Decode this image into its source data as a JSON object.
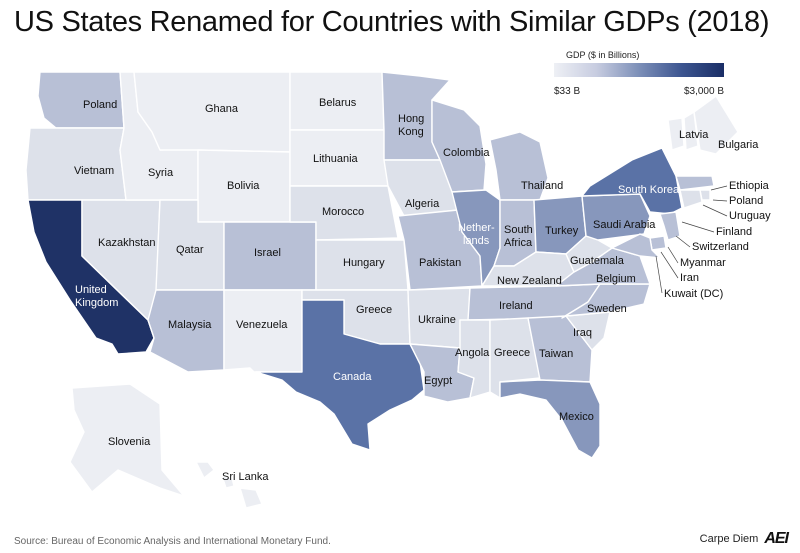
{
  "title": "US States Renamed for Countries with Similar GDPs (2018)",
  "legend": {
    "title": "GDP ($ in Billions)",
    "min_label": "$33 B",
    "max_label": "$3,000 B",
    "colors": [
      "#eef0f5",
      "#c7cce0",
      "#7c8fb8",
      "#3c5590",
      "#1a2e66"
    ]
  },
  "states": [
    {
      "state": "WA",
      "country": "Poland",
      "shade": 2
    },
    {
      "state": "OR",
      "country": "Vietnam",
      "shade": 1
    },
    {
      "state": "CA",
      "country": "United Kingdom",
      "shade": 5
    },
    {
      "state": "NV",
      "country": "Kazakhstan",
      "shade": 1
    },
    {
      "state": "ID",
      "country": "Syria",
      "shade": 0
    },
    {
      "state": "MT",
      "country": "Ghana",
      "shade": 0
    },
    {
      "state": "WY",
      "country": "Bolivia",
      "shade": 0
    },
    {
      "state": "UT",
      "country": "Qatar",
      "shade": 1
    },
    {
      "state": "CO",
      "country": "Israel",
      "shade": 2
    },
    {
      "state": "AZ",
      "country": "Malaysia",
      "shade": 2
    },
    {
      "state": "NM",
      "country": "Venezuela",
      "shade": 0
    },
    {
      "state": "ND",
      "country": "Belarus",
      "shade": 0
    },
    {
      "state": "SD",
      "country": "Lithuania",
      "shade": 0
    },
    {
      "state": "NE",
      "country": "Morocco",
      "shade": 1
    },
    {
      "state": "KS",
      "country": "Hungary",
      "shade": 1
    },
    {
      "state": "OK",
      "country": "Greece",
      "shade": 1
    },
    {
      "state": "TX",
      "country": "Canada",
      "shade": 4
    },
    {
      "state": "MN",
      "country": "Hong Kong",
      "shade": 2
    },
    {
      "state": "IA",
      "country": "Algeria",
      "shade": 1
    },
    {
      "state": "MO",
      "country": "Pakistan",
      "shade": 2
    },
    {
      "state": "AR",
      "country": "Ukraine",
      "shade": 1
    },
    {
      "state": "LA",
      "country": "Egypt",
      "shade": 2
    },
    {
      "state": "WI",
      "country": "Colombia",
      "shade": 2
    },
    {
      "state": "IL",
      "country": "Netherlands",
      "shade": 3
    },
    {
      "state": "MI",
      "country": "Thailand",
      "shade": 2
    },
    {
      "state": "IN",
      "country": "South Africa",
      "shade": 2
    },
    {
      "state": "OH",
      "country": "Turkey",
      "shade": 3
    },
    {
      "state": "KY",
      "country": "New Zealand",
      "shade": 1
    },
    {
      "state": "TN",
      "country": "Ireland",
      "shade": 2
    },
    {
      "state": "MS",
      "country": "Angola",
      "shade": 1
    },
    {
      "state": "AL",
      "country": "Greece",
      "shade": 1
    },
    {
      "state": "GA",
      "country": "Taiwan",
      "shade": 2
    },
    {
      "state": "FL",
      "country": "Mexico",
      "shade": 3
    },
    {
      "state": "SC",
      "country": "Iraq",
      "shade": 1
    },
    {
      "state": "NC",
      "country": "Sweden",
      "shade": 2
    },
    {
      "state": "VA",
      "country": "Belgium",
      "shade": 2
    },
    {
      "state": "WV",
      "country": "Guatemala",
      "shade": 1
    },
    {
      "state": "PA",
      "country": "Saudi Arabia",
      "shade": 3
    },
    {
      "state": "NY",
      "country": "South Korea",
      "shade": 4
    },
    {
      "state": "VT",
      "country": "Latvia",
      "shade": 0
    },
    {
      "state": "NH",
      "country": "Bulgaria",
      "shade": 0
    },
    {
      "state": "ME",
      "country": "Bulgaria",
      "shade": 0
    },
    {
      "state": "MA",
      "country": "Ethiopia",
      "shade": 2
    },
    {
      "state": "RI",
      "country": "Poland",
      "shade": 1
    },
    {
      "state": "CT",
      "country": "Uruguay",
      "shade": 1
    },
    {
      "state": "NJ",
      "country": "Finland",
      "shade": 2
    },
    {
      "state": "DE",
      "country": "Switzerland",
      "shade": 2
    },
    {
      "state": "MD",
      "country": "Myanmar",
      "shade": 2
    },
    {
      "state": "DC",
      "country": "Iran",
      "shade": 1
    },
    {
      "state": "DC2",
      "country": "Kuwait (DC)",
      "shade": 1
    },
    {
      "state": "AK",
      "country": "Slovenia",
      "shade": 0
    },
    {
      "state": "HI",
      "country": "Sri Lanka",
      "shade": 0
    }
  ],
  "labels": {
    "WA": "Poland",
    "OR": "Vietnam",
    "CA1": "United",
    "CA2": "Kingdom",
    "NV": "Kazakhstan",
    "ID": "Syria",
    "MT": "Ghana",
    "WY": "Bolivia",
    "UT": "Qatar",
    "CO": "Israel",
    "AZ": "Malaysia",
    "NM": "Venezuela",
    "ND": "Belarus",
    "SD": "Lithuania",
    "NE": "Morocco",
    "KS": "Hungary",
    "OK": "Greece",
    "TX": "Canada",
    "MN1": "Hong",
    "MN2": "Kong",
    "IA": "Algeria",
    "MO": "Pakistan",
    "AR": "Ukraine",
    "LA": "Egypt",
    "WI": "Colombia",
    "IL1": "Nether-",
    "IL2": "lands",
    "MI": "Thailand",
    "IN1": "South",
    "IN2": "Africa",
    "OH": "Turkey",
    "KY": "New Zealand",
    "TN": "Ireland",
    "MS": "Angola",
    "AL": "Greece",
    "GA": "Taiwan",
    "FL": "Mexico",
    "SC": "Iraq",
    "NC": "Sweden",
    "VA": "Belgium",
    "WV": "Guatemala",
    "PA": "Saudi Arabia",
    "NY": "South Korea",
    "VT": "Latvia",
    "NE_REG": "Bulgaria",
    "MA": "Ethiopia",
    "RI": "Poland",
    "CT": "Uruguay",
    "NJ": "Finland",
    "DE": "Switzerland",
    "MD": "Myanmar",
    "DC_IRAN": "Iran",
    "DC": "Kuwait (DC)",
    "AK": "Slovenia",
    "HI": "Sri Lanka"
  },
  "source": "Source: Bureau of Economic Analysis and International Monetary Fund.",
  "brand": {
    "name": "Carpe Diem",
    "logo": "AEI"
  }
}
